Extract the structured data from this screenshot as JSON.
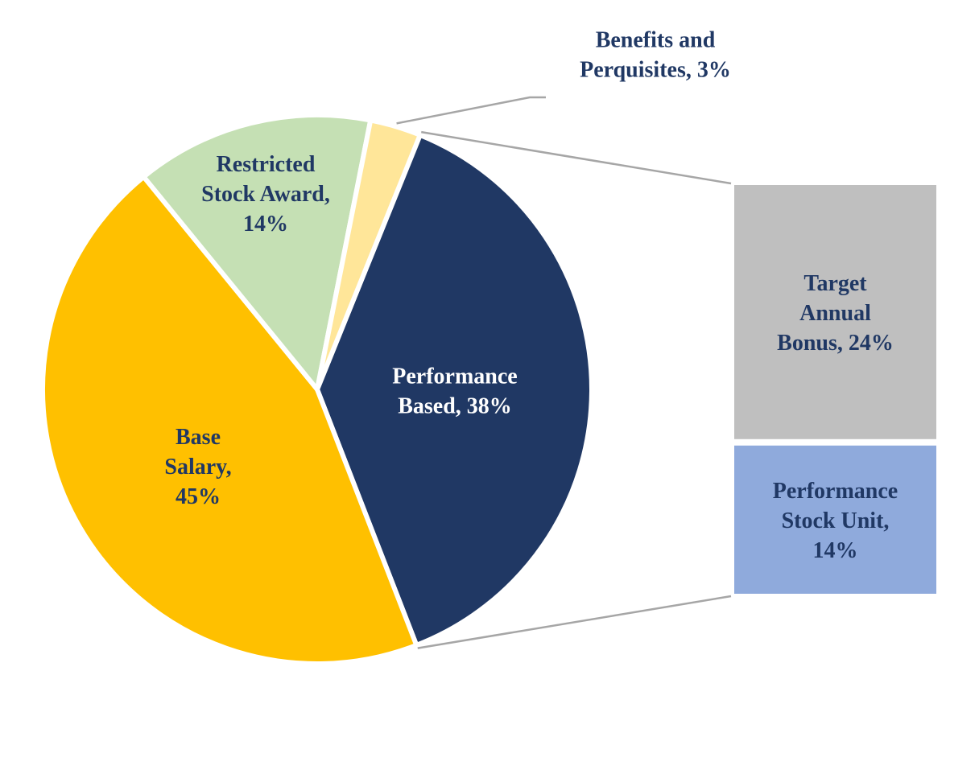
{
  "chart_data": {
    "type": "pie",
    "title": "",
    "slices": [
      {
        "name": "Performance Based",
        "value": 38,
        "label_lines": [
          "Performance",
          "Based, 38%"
        ],
        "color": "#203864",
        "text_color": "#ffffff"
      },
      {
        "name": "Base Salary",
        "value": 45,
        "label_lines": [
          "Base",
          "Salary,",
          "45%"
        ],
        "color": "#FFC000",
        "text_color": "#203864"
      },
      {
        "name": "Restricted Stock Award",
        "value": 14,
        "label_lines": [
          "Restricted",
          "Stock Award,",
          "14%"
        ],
        "color": "#C5E0B4",
        "text_color": "#203864"
      },
      {
        "name": "Benefits and Perquisites",
        "value": 3,
        "label_lines": [
          "Benefits and",
          "Perquisites, 3%"
        ],
        "color": "#FFE699",
        "text_color": "#203864"
      }
    ],
    "breakdown": {
      "of": "Performance Based",
      "segments": [
        {
          "name": "Target Annual Bonus",
          "value": 24,
          "label_lines": [
            "Target",
            "Annual",
            "Bonus, 24%"
          ],
          "color": "#BFBFBF",
          "text_color": "#203864"
        },
        {
          "name": "Performance Stock Unit",
          "value": 14,
          "label_lines": [
            "Performance",
            "Stock Unit,",
            "14%"
          ],
          "color": "#8FAADC",
          "text_color": "#203864"
        }
      ]
    },
    "connector_color": "#A6A6A6",
    "legend": "none"
  }
}
